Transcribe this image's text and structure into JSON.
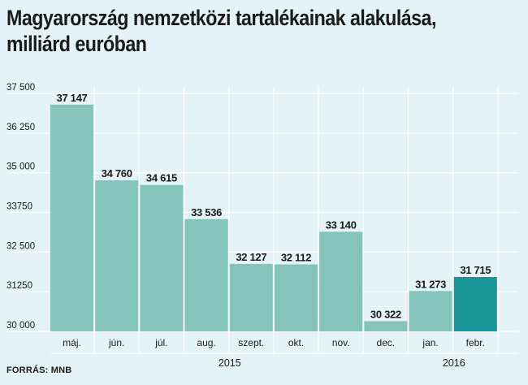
{
  "chart_data": {
    "type": "bar",
    "title": "Magyarország nemzetközi tartalékainak alakulása,",
    "subtitle": "milliárd euróban",
    "categories": [
      "máj.",
      "jún.",
      "júl.",
      "aug.",
      "szept.",
      "okt.",
      "nov.",
      "dec.",
      "jan.",
      "febr."
    ],
    "values": [
      37147,
      34760,
      34615,
      33536,
      32127,
      32112,
      33140,
      30322,
      31273,
      31715
    ],
    "value_labels": [
      "37 147",
      "34 760",
      "34 615",
      "33 536",
      "32 127",
      "32 112",
      "33 140",
      "30 322",
      "31 273",
      "31 715"
    ],
    "ylim": [
      30000,
      37500
    ],
    "yticks": [
      30000,
      31250,
      32500,
      33750,
      35000,
      36250,
      37500
    ],
    "ytick_labels": [
      "30 000",
      "31250",
      "32 500",
      "33750",
      "35 000",
      "36 250",
      "37 500"
    ],
    "year_groups": [
      {
        "label": "2015",
        "start": 0,
        "end": 7
      },
      {
        "label": "2016",
        "start": 8,
        "end": 9
      }
    ],
    "colors": {
      "bar": "#85c3bd",
      "highlight_bar": "#1a9698",
      "background": "#e3f3f7",
      "grid": "#ffffff",
      "text": "#1a1a1a"
    },
    "highlight_index": 9,
    "grid": true,
    "source": "FORRÁS: MNB"
  }
}
